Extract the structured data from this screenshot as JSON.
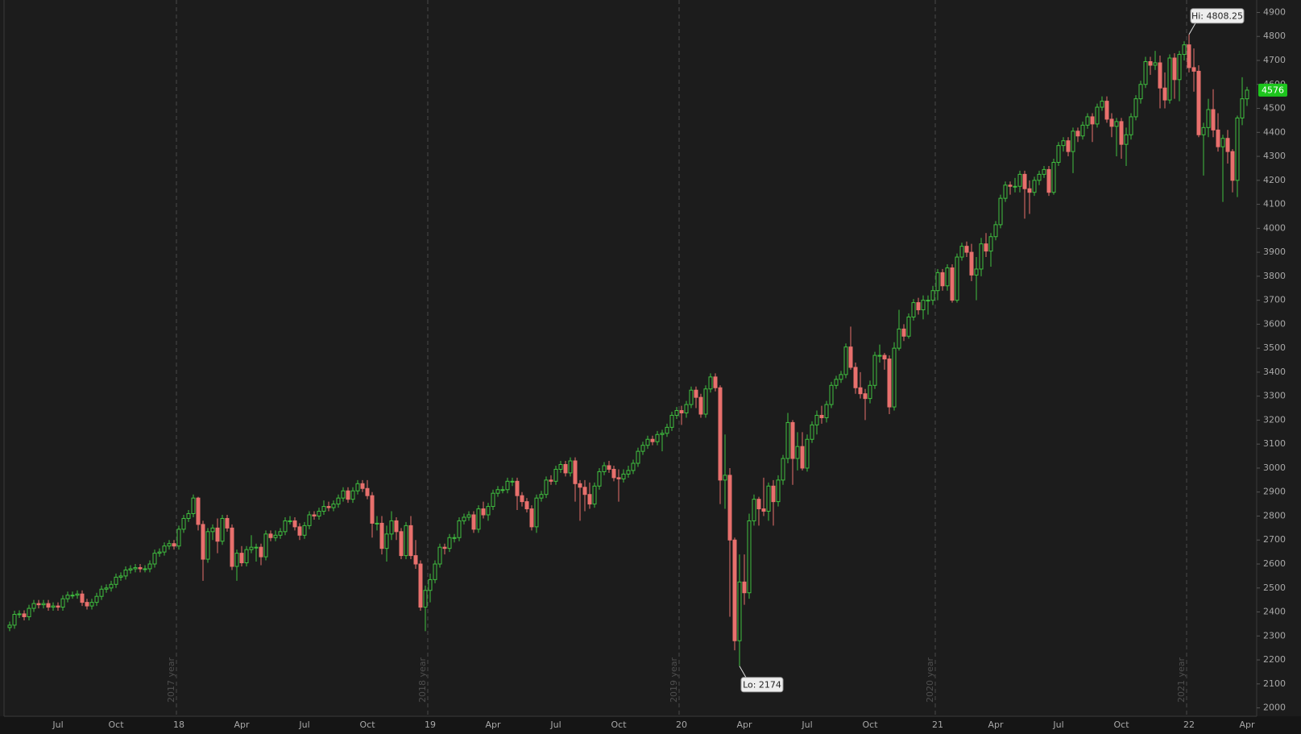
{
  "chart_data": {
    "type": "candlestick",
    "up_color": "#3fbf3f",
    "down_color": "#e8706d",
    "last_price_color": "#1dc51d",
    "categories": [
      null,
      null,
      null,
      null,
      null,
      null,
      null,
      null,
      null,
      null,
      "Jul",
      null,
      null,
      null,
      null,
      null,
      null,
      null,
      null,
      null,
      null,
      null,
      "Oct",
      null,
      null,
      null,
      null,
      null,
      null,
      null,
      null,
      null,
      null,
      null,
      null,
      "18",
      null,
      null,
      null,
      null,
      null,
      null,
      null,
      null,
      null,
      null,
      null,
      null,
      "Apr",
      null,
      null,
      null,
      null,
      null,
      null,
      null,
      null,
      null,
      null,
      null,
      null,
      "Jul",
      null,
      null,
      null,
      null,
      null,
      null,
      null,
      null,
      null,
      null,
      null,
      null,
      "Oct",
      null,
      null,
      null,
      null,
      null,
      null,
      null,
      null,
      null,
      null,
      null,
      null,
      "19",
      null,
      null,
      null,
      null,
      null,
      null,
      null,
      null,
      null,
      null,
      null,
      null,
      "Apr",
      null,
      null,
      null,
      null,
      null,
      null,
      null,
      null,
      null,
      null,
      null,
      null,
      "Jul",
      null,
      null,
      null,
      null,
      null,
      null,
      null,
      null,
      null,
      null,
      null,
      null,
      "Oct",
      null,
      null,
      null,
      null,
      null,
      null,
      null,
      null,
      null,
      null,
      null,
      null,
      "20",
      null,
      null,
      null,
      null,
      null,
      null,
      null,
      null,
      null,
      null,
      null,
      null,
      "Apr",
      null,
      null,
      null,
      null,
      null,
      null,
      null,
      null,
      null,
      null,
      null,
      null,
      "Jul",
      null,
      null,
      null,
      null,
      null,
      null,
      null,
      null,
      null,
      null,
      null,
      null,
      "Oct",
      null,
      null,
      null,
      null,
      null,
      null,
      null,
      null,
      null,
      null,
      null,
      null,
      null,
      "21",
      null,
      null,
      null,
      null,
      null,
      null,
      null,
      null,
      null,
      null,
      null,
      "Apr",
      null,
      null,
      null,
      null,
      null,
      null,
      null,
      null,
      null,
      null,
      null,
      null,
      "Jul",
      null,
      null,
      null,
      null,
      null,
      null,
      null,
      null,
      null,
      null,
      null,
      null,
      "Oct",
      null,
      null,
      null,
      null,
      null,
      null,
      null,
      null,
      null,
      null,
      null,
      null,
      null,
      "22",
      null,
      null,
      null,
      null,
      null,
      null,
      null,
      null,
      null,
      null,
      null,
      "Apr"
    ],
    "open": [
      2335,
      2345,
      2390,
      2392,
      2380,
      2415,
      2435,
      2430,
      2435,
      2420,
      2425,
      2420,
      2455,
      2470,
      2470,
      2475,
      2440,
      2425,
      2440,
      2465,
      2495,
      2500,
      2515,
      2545,
      2550,
      2575,
      2580,
      2585,
      2580,
      2580,
      2600,
      2645,
      2650,
      2675,
      2685,
      2675,
      2745,
      2790,
      2810,
      2875,
      2765,
      2620,
      2735,
      2750,
      2695,
      2790,
      2750,
      2590,
      2645,
      2605,
      2660,
      2670,
      2670,
      2630,
      2725,
      2710,
      2720,
      2735,
      2780,
      2780,
      2755,
      2720,
      2760,
      2805,
      2800,
      2820,
      2840,
      2835,
      2850,
      2875,
      2905,
      2870,
      2905,
      2935,
      2915,
      2885,
      2770,
      2770,
      2665,
      2725,
      2780,
      2735,
      2635,
      2760,
      2635,
      2600,
      2420,
      2490,
      2535,
      2600,
      2670,
      2665,
      2710,
      2710,
      2780,
      2795,
      2805,
      2745,
      2830,
      2805,
      2840,
      2895,
      2910,
      2910,
      2945,
      2945,
      2885,
      2860,
      2830,
      2755,
      2875,
      2890,
      2950,
      2945,
      2995,
      3015,
      2980,
      3030,
      2935,
      2920,
      2890,
      2850,
      2925,
      2985,
      3010,
      2995,
      2960,
      2955,
      2975,
      2990,
      3020,
      3070,
      3095,
      3120,
      3110,
      3140,
      3145,
      3170,
      3220,
      3240,
      3230,
      3265,
      3325,
      3295,
      3225,
      3330,
      3380,
      3335,
      2950,
      2970,
      2700,
      2280,
      2525,
      2480,
      2780,
      2870,
      2830,
      2820,
      2925,
      2860,
      2950,
      3040,
      3190,
      3040,
      3090,
      3000,
      3120,
      3180,
      3220,
      3210,
      3265,
      3345,
      3370,
      3390,
      3505,
      3420,
      3335,
      3310,
      3290,
      3345,
      3470,
      3470,
      3455,
      3255,
      3500,
      3580,
      3550,
      3630,
      3690,
      3660,
      3700,
      3700,
      3740,
      3815,
      3760,
      3835,
      3700,
      3880,
      3925,
      3900,
      3805,
      3830,
      3935,
      3905,
      3965,
      4015,
      4125,
      4180,
      4175,
      4175,
      4225,
      4165,
      4150,
      4200,
      4225,
      4245,
      4150,
      4275,
      4345,
      4365,
      4320,
      4405,
      4385,
      4430,
      4465,
      4435,
      4505,
      4530,
      4455,
      4425,
      4445,
      4350,
      4390,
      4465,
      4540,
      4600,
      4695,
      4680,
      4690,
      4585,
      4535,
      4710,
      4620,
      4725,
      4765,
      4670,
      4655,
      4390,
      4420,
      4495,
      4410,
      4340,
      4375,
      4320,
      4200,
      4460,
      4540
    ],
    "high": [
      2360,
      2405,
      2407,
      2407,
      2430,
      2450,
      2450,
      2450,
      2450,
      2440,
      2440,
      2470,
      2485,
      2485,
      2490,
      2490,
      2455,
      2455,
      2480,
      2510,
      2515,
      2530,
      2560,
      2565,
      2590,
      2595,
      2600,
      2600,
      2595,
      2615,
      2660,
      2665,
      2690,
      2700,
      2700,
      2760,
      2805,
      2825,
      2890,
      2880,
      2780,
      2750,
      2765,
      2790,
      2805,
      2805,
      2765,
      2660,
      2675,
      2675,
      2720,
      2685,
      2685,
      2740,
      2740,
      2740,
      2750,
      2795,
      2800,
      2795,
      2770,
      2775,
      2820,
      2820,
      2835,
      2865,
      2860,
      2865,
      2890,
      2920,
      2920,
      2920,
      2950,
      2950,
      2950,
      2900,
      2800,
      2800,
      2760,
      2820,
      2795,
      2750,
      2775,
      2800,
      2700,
      2615,
      2510,
      2560,
      2615,
      2685,
      2685,
      2725,
      2725,
      2795,
      2810,
      2820,
      2820,
      2845,
      2860,
      2855,
      2910,
      2925,
      2925,
      2960,
      2960,
      2960,
      2900,
      2875,
      2845,
      2890,
      2905,
      2965,
      2970,
      3010,
      3030,
      3030,
      3045,
      3045,
      2950,
      2950,
      2940,
      2940,
      3000,
      3025,
      3030,
      3010,
      2995,
      2995,
      3010,
      3035,
      3085,
      3110,
      3135,
      3135,
      3155,
      3160,
      3185,
      3235,
      3255,
      3260,
      3280,
      3340,
      3340,
      3310,
      3345,
      3395,
      3395,
      3345,
      3140,
      3000,
      2710,
      2640,
      2640,
      2810,
      2890,
      2880,
      2960,
      2940,
      2950,
      2970,
      3055,
      3230,
      3200,
      3150,
      3150,
      3140,
      3195,
      3240,
      3260,
      3280,
      3360,
      3385,
      3405,
      3520,
      3590,
      3440,
      3400,
      3330,
      3365,
      3485,
      3515,
      3480,
      3470,
      3525,
      3660,
      3600,
      3645,
      3705,
      3710,
      3720,
      3720,
      3760,
      3830,
      3830,
      3850,
      3850,
      3895,
      3940,
      3945,
      3935,
      3880,
      3960,
      3980,
      3980,
      4030,
      4140,
      4195,
      4195,
      4210,
      4240,
      4240,
      4200,
      4215,
      4240,
      4260,
      4260,
      4290,
      4360,
      4380,
      4380,
      4420,
      4420,
      4445,
      4480,
      4480,
      4520,
      4550,
      4550,
      4480,
      4460,
      4460,
      4420,
      4480,
      4555,
      4615,
      4715,
      4715,
      4740,
      4720,
      4650,
      4725,
      4730,
      4740,
      4780,
      4808.25,
      4750,
      4680,
      4440,
      4540,
      4580,
      4480,
      4390,
      4410,
      4330,
      4470,
      4630,
      4590
    ],
    "low": [
      2320,
      2330,
      2375,
      2365,
      2365,
      2400,
      2415,
      2415,
      2405,
      2405,
      2405,
      2405,
      2440,
      2455,
      2455,
      2425,
      2410,
      2410,
      2425,
      2450,
      2480,
      2485,
      2500,
      2530,
      2535,
      2560,
      2565,
      2565,
      2565,
      2565,
      2585,
      2630,
      2635,
      2660,
      2660,
      2660,
      2730,
      2775,
      2795,
      2740,
      2530,
      2605,
      2700,
      2645,
      2680,
      2735,
      2575,
      2530,
      2590,
      2590,
      2645,
      2610,
      2595,
      2615,
      2695,
      2695,
      2705,
      2720,
      2765,
      2740,
      2700,
      2705,
      2745,
      2785,
      2785,
      2805,
      2820,
      2820,
      2835,
      2860,
      2855,
      2855,
      2890,
      2900,
      2870,
      2710,
      2740,
      2640,
      2610,
      2700,
      2700,
      2620,
      2620,
      2620,
      2580,
      2405,
      2320,
      2440,
      2520,
      2585,
      2640,
      2650,
      2690,
      2695,
      2765,
      2780,
      2730,
      2730,
      2790,
      2780,
      2825,
      2880,
      2895,
      2895,
      2925,
      2825,
      2840,
      2815,
      2740,
      2730,
      2860,
      2875,
      2930,
      2930,
      2980,
      2965,
      2965,
      2860,
      2780,
      2820,
      2830,
      2835,
      2910,
      2970,
      2980,
      2945,
      2860,
      2940,
      2960,
      2975,
      3005,
      3055,
      3080,
      3095,
      3095,
      3070,
      3130,
      3155,
      3205,
      3180,
      3210,
      3250,
      3250,
      3210,
      3210,
      3315,
      3320,
      2850,
      2830,
      2380,
      2240,
      2174,
      2430,
      2455,
      2760,
      2760,
      2800,
      2780,
      2760,
      2840,
      2930,
      3020,
      2930,
      2990,
      2990,
      2985,
      3105,
      3140,
      3185,
      3190,
      3250,
      3330,
      3355,
      3375,
      3410,
      3310,
      3290,
      3200,
      3270,
      3330,
      3440,
      3410,
      3225,
      3240,
      3490,
      3530,
      3540,
      3615,
      3640,
      3620,
      3640,
      3680,
      3700,
      3740,
      3740,
      3690,
      3690,
      3865,
      3880,
      3780,
      3700,
      3800,
      3880,
      3840,
      3950,
      4000,
      4110,
      4140,
      4150,
      4150,
      4040,
      4060,
      4135,
      4180,
      4210,
      4135,
      4140,
      4260,
      4320,
      4300,
      4230,
      4360,
      4370,
      4415,
      4360,
      4420,
      4490,
      4440,
      4380,
      4300,
      4290,
      4260,
      4370,
      4450,
      4520,
      4585,
      4640,
      4660,
      4500,
      4500,
      4520,
      4540,
      4530,
      4700,
      4650,
      4570,
      4380,
      4220,
      4380,
      4380,
      4320,
      4110,
      4270,
      4150,
      4130,
      4430,
      4510
    ],
    "close": [
      2345,
      2390,
      2392,
      2380,
      2415,
      2435,
      2430,
      2435,
      2420,
      2425,
      2420,
      2455,
      2470,
      2470,
      2475,
      2440,
      2425,
      2440,
      2465,
      2495,
      2500,
      2515,
      2545,
      2550,
      2575,
      2580,
      2585,
      2580,
      2580,
      2600,
      2645,
      2650,
      2675,
      2685,
      2675,
      2745,
      2790,
      2810,
      2875,
      2765,
      2620,
      2735,
      2750,
      2695,
      2790,
      2750,
      2590,
      2645,
      2605,
      2660,
      2670,
      2670,
      2630,
      2725,
      2710,
      2720,
      2735,
      2780,
      2780,
      2755,
      2720,
      2760,
      2805,
      2800,
      2820,
      2840,
      2835,
      2850,
      2875,
      2905,
      2870,
      2905,
      2935,
      2915,
      2885,
      2770,
      2770,
      2665,
      2725,
      2780,
      2735,
      2635,
      2760,
      2635,
      2600,
      2420,
      2490,
      2535,
      2600,
      2670,
      2665,
      2710,
      2710,
      2780,
      2795,
      2805,
      2745,
      2830,
      2805,
      2840,
      2895,
      2910,
      2910,
      2945,
      2945,
      2885,
      2860,
      2830,
      2755,
      2875,
      2890,
      2950,
      2945,
      2995,
      3015,
      2980,
      3030,
      2935,
      2920,
      2890,
      2850,
      2925,
      2985,
      3010,
      2995,
      2960,
      2955,
      2975,
      2990,
      3020,
      3070,
      3095,
      3120,
      3110,
      3140,
      3145,
      3170,
      3220,
      3240,
      3230,
      3265,
      3325,
      3295,
      3225,
      3330,
      3380,
      3335,
      2950,
      2970,
      2700,
      2280,
      2525,
      2480,
      2780,
      2870,
      2830,
      2820,
      2925,
      2860,
      2950,
      3040,
      3190,
      3040,
      3090,
      3000,
      3120,
      3180,
      3220,
      3210,
      3265,
      3345,
      3370,
      3390,
      3505,
      3420,
      3335,
      3310,
      3290,
      3345,
      3470,
      3470,
      3455,
      3255,
      3500,
      3580,
      3550,
      3630,
      3690,
      3660,
      3700,
      3700,
      3740,
      3815,
      3760,
      3835,
      3700,
      3880,
      3925,
      3900,
      3805,
      3830,
      3935,
      3905,
      3965,
      4015,
      4125,
      4180,
      4175,
      4175,
      4225,
      4165,
      4150,
      4200,
      4225,
      4245,
      4150,
      4275,
      4345,
      4365,
      4320,
      4405,
      4385,
      4430,
      4465,
      4435,
      4505,
      4530,
      4455,
      4425,
      4445,
      4350,
      4390,
      4465,
      4540,
      4600,
      4695,
      4680,
      4690,
      4585,
      4535,
      4710,
      4620,
      4725,
      4765,
      4670,
      4655,
      4390,
      4420,
      4495,
      4410,
      4340,
      4375,
      4320,
      4200,
      4460,
      4540,
      4576
    ],
    "ylim": [
      1965,
      4952
    ],
    "yticks": [
      2000,
      2100,
      2200,
      2300,
      2400,
      2500,
      2600,
      2700,
      2800,
      2900,
      3000,
      3100,
      3200,
      3300,
      3400,
      3500,
      3600,
      3700,
      3800,
      3900,
      4000,
      4100,
      4200,
      4300,
      4400,
      4500,
      4600,
      4700,
      4800,
      4900
    ],
    "period_labels": [
      "2017 year",
      "2018 year",
      "2019 year",
      "2020 year",
      "2021 year"
    ],
    "high_label": "Hi: 4808.25",
    "low_label": "Lo: 2174"
  }
}
